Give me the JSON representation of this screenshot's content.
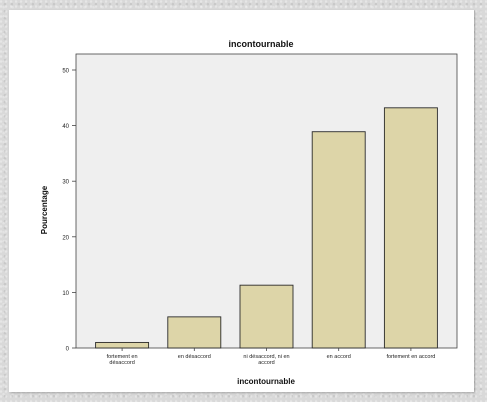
{
  "chart_data": {
    "type": "bar",
    "title": "incontournable",
    "xlabel": "incontournable",
    "ylabel": "Pourcentage",
    "ylim": [
      0,
      50
    ],
    "yticks": [
      0,
      10,
      20,
      30,
      40,
      50
    ],
    "grid": false,
    "categories": [
      [
        "fortement en",
        "désaccord"
      ],
      [
        "en désaccord"
      ],
      [
        "ni désaccord, ni en",
        "accord"
      ],
      [
        "en accord"
      ],
      [
        "fortement en accord"
      ]
    ],
    "values": [
      1.0,
      5.6,
      11.3,
      38.9,
      43.2
    ],
    "colors": {
      "bar_fill": "#ddd5a8",
      "bar_stroke": "#2a2a2a",
      "plot_bg": "#efefef"
    }
  }
}
